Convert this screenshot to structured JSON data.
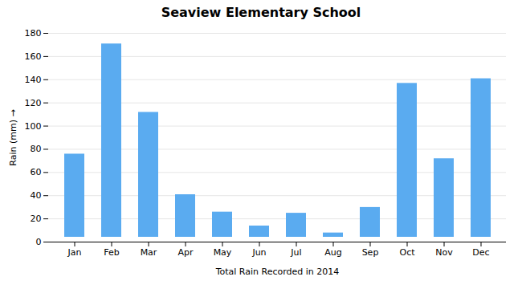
{
  "chart_data": {
    "type": "bar",
    "title": "Seaview Elementary School",
    "xlabel": "Total Rain Recorded in 2014",
    "ylabel": "Rain (mm)",
    "categories": [
      "Jan",
      "Feb",
      "Mar",
      "Apr",
      "May",
      "Jun",
      "Jul",
      "Aug",
      "Sep",
      "Oct",
      "Nov",
      "Dec"
    ],
    "values": [
      80,
      175,
      116,
      45,
      30,
      18,
      29,
      12,
      34,
      141,
      76,
      145
    ],
    "color": "#5aabf0",
    "ylim": [
      0,
      180
    ],
    "yticks": [
      0,
      20,
      40,
      60,
      80,
      100,
      120,
      140,
      160,
      180
    ],
    "grid": true
  }
}
